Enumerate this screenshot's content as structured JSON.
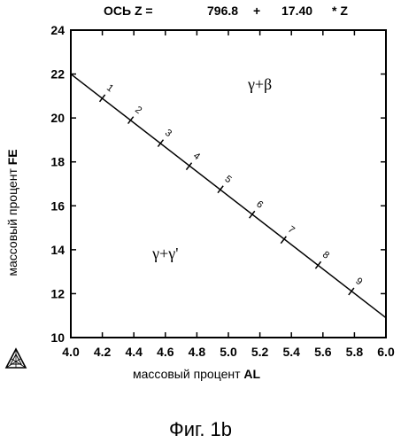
{
  "header": {
    "axis_label": "ОСЬ Z =",
    "intercept": "796.8",
    "plus": "+",
    "slope": "17.40",
    "var": "* Z"
  },
  "caption": "Фиг. 1b",
  "logo": "ternary-triangle-icon",
  "chart_data": {
    "type": "line",
    "xlabel_text": "массовый процент",
    "xlabel_element": "AL",
    "ylabel_text": "массовый процент",
    "ylabel_element": "FE",
    "xlim": [
      4.0,
      6.0
    ],
    "ylim": [
      10,
      24
    ],
    "xticks": [
      "4.0",
      "4.2",
      "4.4",
      "4.6",
      "4.8",
      "5.0",
      "5.2",
      "5.4",
      "5.6",
      "5.8",
      "6.0"
    ],
    "yticks": [
      "10",
      "12",
      "14",
      "16",
      "18",
      "20",
      "22",
      "24"
    ],
    "grid": false,
    "series": [
      {
        "x": [
          4.0,
          6.0
        ],
        "y": [
          22.0,
          10.9
        ]
      }
    ],
    "markers": [
      {
        "label": "1",
        "x": 4.2,
        "y": 20.9
      },
      {
        "label": "2",
        "x": 4.38,
        "y": 19.9
      },
      {
        "label": "3",
        "x": 4.57,
        "y": 18.85
      },
      {
        "label": "4",
        "x": 4.75,
        "y": 17.8
      },
      {
        "label": "5",
        "x": 4.95,
        "y": 16.75
      },
      {
        "label": "6",
        "x": 5.15,
        "y": 15.6
      },
      {
        "label": "7",
        "x": 5.35,
        "y": 14.45
      },
      {
        "label": "8",
        "x": 5.57,
        "y": 13.3
      },
      {
        "label": "9",
        "x": 5.78,
        "y": 12.1
      }
    ],
    "regions": [
      {
        "label": "γ+β",
        "x": 5.2,
        "y": 21.3
      },
      {
        "label": "γ+γ'",
        "x": 4.6,
        "y": 13.6
      }
    ]
  }
}
